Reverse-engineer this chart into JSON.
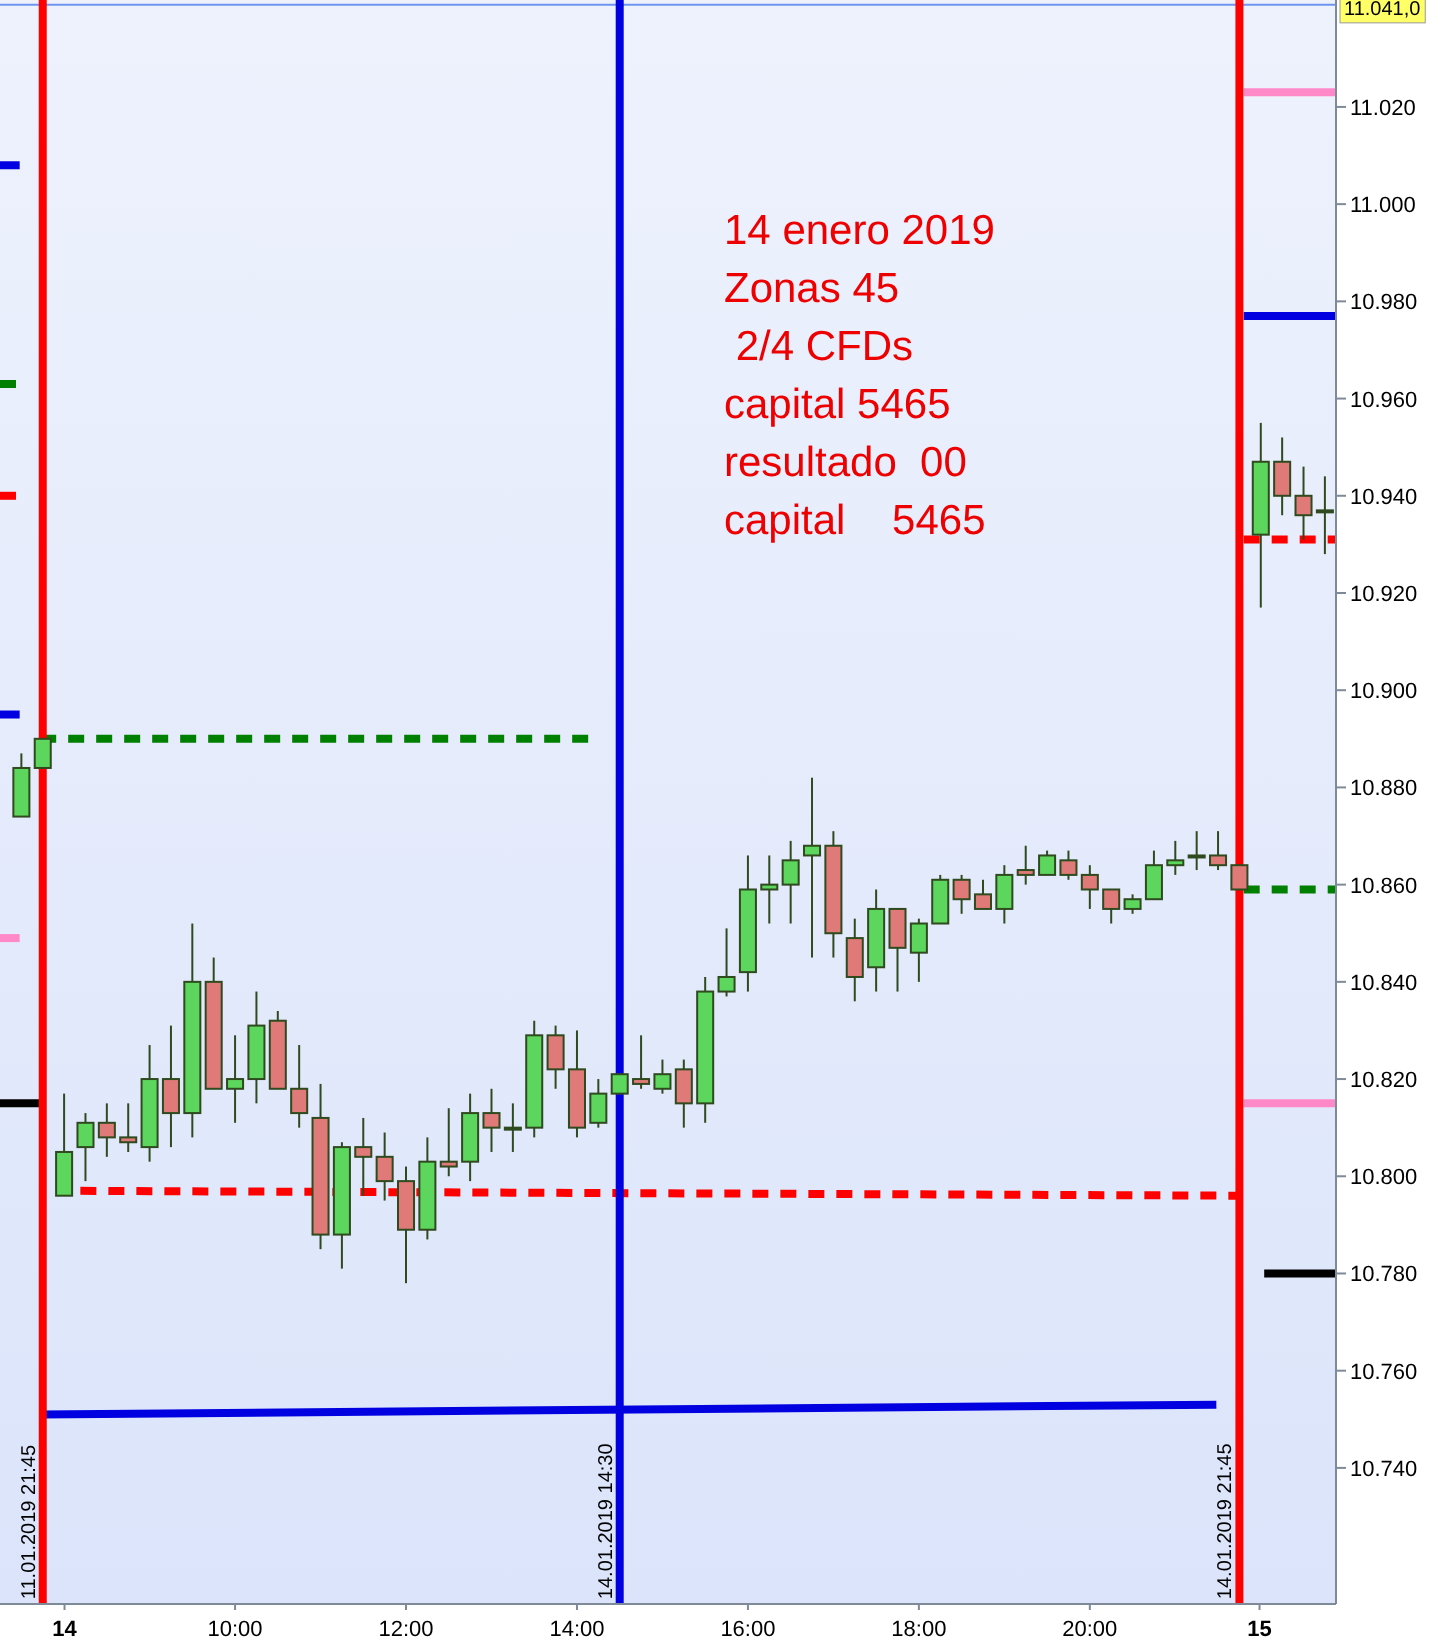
{
  "chart_data": {
    "type": "candlestick",
    "x": [
      7.5,
      7.75,
      8,
      8.25,
      8.5,
      8.75,
      9,
      9.25,
      9.5,
      9.75,
      10,
      10.25,
      10.5,
      10.75,
      11,
      11.25,
      11.5,
      11.75,
      12,
      12.25,
      12.5,
      12.75,
      13,
      13.25,
      13.5,
      13.75,
      14,
      14.25,
      14.5,
      14.75,
      15,
      15.25,
      15.5,
      15.75,
      16,
      16.25,
      16.5,
      16.75,
      17,
      17.25,
      17.5,
      17.75,
      18,
      18.25,
      18.5,
      18.75,
      19,
      19.25,
      19.5,
      19.75,
      20,
      20.25,
      20.5,
      20.75,
      21,
      21.25,
      21.5,
      21.75,
      22,
      22.25,
      22.5,
      22.75
    ],
    "ohlc": [
      [
        10.874,
        10.887,
        10.874,
        10.884
      ],
      [
        10.884,
        10.89,
        10.884,
        10.89
      ],
      [
        10.796,
        10.817,
        10.796,
        10.805
      ],
      [
        10.806,
        10.813,
        10.799,
        10.811
      ],
      [
        10.811,
        10.815,
        10.804,
        10.808
      ],
      [
        10.808,
        10.815,
        10.805,
        10.807
      ],
      [
        10.806,
        10.827,
        10.803,
        10.82
      ],
      [
        10.82,
        10.831,
        10.806,
        10.813
      ],
      [
        10.813,
        10.852,
        10.808,
        10.84
      ],
      [
        10.84,
        10.845,
        10.818,
        10.818
      ],
      [
        10.818,
        10.829,
        10.811,
        10.82
      ],
      [
        10.82,
        10.838,
        10.815,
        10.831
      ],
      [
        10.832,
        10.834,
        10.818,
        10.818
      ],
      [
        10.818,
        10.827,
        10.81,
        10.813
      ],
      [
        10.812,
        10.819,
        10.785,
        10.788
      ],
      [
        10.788,
        10.807,
        10.781,
        10.806
      ],
      [
        10.806,
        10.812,
        10.796,
        10.804
      ],
      [
        10.804,
        10.809,
        10.795,
        10.799
      ],
      [
        10.799,
        10.802,
        10.778,
        10.789
      ],
      [
        10.789,
        10.808,
        10.787,
        10.803
      ],
      [
        10.803,
        10.814,
        10.8,
        10.802
      ],
      [
        10.803,
        10.817,
        10.799,
        10.813
      ],
      [
        10.813,
        10.818,
        10.805,
        10.81
      ],
      [
        10.81,
        10.815,
        10.805,
        10.81
      ],
      [
        10.81,
        10.832,
        10.808,
        10.829
      ],
      [
        10.829,
        10.831,
        10.818,
        10.822
      ],
      [
        10.822,
        10.83,
        10.808,
        10.81
      ],
      [
        10.811,
        10.82,
        10.81,
        10.817
      ],
      [
        10.817,
        10.821,
        10.817,
        10.821
      ],
      [
        10.82,
        10.829,
        10.818,
        10.819
      ],
      [
        10.818,
        10.824,
        10.817,
        10.821
      ],
      [
        10.822,
        10.824,
        10.81,
        10.815
      ],
      [
        10.815,
        10.841,
        10.811,
        10.838
      ],
      [
        10.838,
        10.851,
        10.837,
        10.841
      ],
      [
        10.842,
        10.866,
        10.838,
        10.859
      ],
      [
        10.859,
        10.866,
        10.852,
        10.86
      ],
      [
        10.86,
        10.869,
        10.852,
        10.865
      ],
      [
        10.866,
        10.882,
        10.845,
        10.868
      ],
      [
        10.868,
        10.871,
        10.845,
        10.85
      ],
      [
        10.849,
        10.853,
        10.836,
        10.841
      ],
      [
        10.843,
        10.859,
        10.838,
        10.855
      ],
      [
        10.855,
        10.855,
        10.838,
        10.847
      ],
      [
        10.846,
        10.853,
        10.84,
        10.852
      ],
      [
        10.852,
        10.862,
        10.852,
        10.861
      ],
      [
        10.861,
        10.862,
        10.854,
        10.857
      ],
      [
        10.858,
        10.861,
        10.855,
        10.855
      ],
      [
        10.855,
        10.864,
        10.852,
        10.862
      ],
      [
        10.863,
        10.868,
        10.86,
        10.862
      ],
      [
        10.862,
        10.867,
        10.862,
        10.866
      ],
      [
        10.865,
        10.867,
        10.861,
        10.862
      ],
      [
        10.862,
        10.864,
        10.855,
        10.859
      ],
      [
        10.859,
        10.859,
        10.852,
        10.855
      ],
      [
        10.855,
        10.858,
        10.854,
        10.857
      ],
      [
        10.857,
        10.867,
        10.857,
        10.864
      ],
      [
        10.864,
        10.869,
        10.862,
        10.865
      ],
      [
        10.866,
        10.871,
        10.863,
        10.866
      ],
      [
        10.866,
        10.871,
        10.863,
        10.864
      ],
      [
        10.864,
        10.864,
        10.859,
        10.859
      ],
      [
        10.932,
        10.955,
        10.917,
        10.947
      ],
      [
        10.947,
        10.952,
        10.936,
        10.94
      ],
      [
        10.94,
        10.946,
        10.931,
        10.936
      ],
      [
        10.937,
        10.944,
        10.928,
        10.937
      ]
    ],
    "colors": [
      "#5cd65c",
      "#5cd65c",
      "#5cd65c",
      "#5cd65c",
      "#e07a78",
      "#e07a78",
      "#5cd65c",
      "#e07a78",
      "#5cd65c",
      "#e07a78",
      "#5cd65c",
      "#5cd65c",
      "#e07a78",
      "#e07a78",
      "#e07a78",
      "#5cd65c",
      "#e07a78",
      "#e07a78",
      "#e07a78",
      "#5cd65c",
      "#e07a78",
      "#5cd65c",
      "#e07a78",
      "#5cd65c",
      "#5cd65c",
      "#e07a78",
      "#e07a78",
      "#5cd65c",
      "#5cd65c",
      "#e07a78",
      "#5cd65c",
      "#e07a78",
      "#5cd65c",
      "#5cd65c",
      "#5cd65c",
      "#5cd65c",
      "#5cd65c",
      "#5cd65c",
      "#e07a78",
      "#e07a78",
      "#5cd65c",
      "#e07a78",
      "#5cd65c",
      "#5cd65c",
      "#e07a78",
      "#e07a78",
      "#5cd65c",
      "#e07a78",
      "#5cd65c",
      "#e07a78",
      "#e07a78",
      "#e07a78",
      "#5cd65c",
      "#5cd65c",
      "#5cd65c",
      "#e07a78",
      "#e07a78",
      "#e07a78",
      "#5cd65c",
      "#e07a78",
      "#e07a78",
      "#5cd65c"
    ],
    "series": [
      {
        "type": "line",
        "x": [
          7.25,
          7.48
        ],
        "values": [
          11.008,
          11.008
        ],
        "color": "#0000e0",
        "line_style": "solid"
      },
      {
        "type": "line",
        "x": [
          7.25,
          7.48
        ],
        "values": [
          10.963,
          10.963
        ],
        "color": "#008000",
        "line_style": "dashed"
      },
      {
        "type": "line",
        "x": [
          7.25,
          7.48
        ],
        "values": [
          10.94,
          10.94
        ],
        "color": "#ff0000",
        "line_style": "dashed"
      },
      {
        "type": "line",
        "x": [
          7.25,
          7.48
        ],
        "values": [
          10.895,
          10.895
        ],
        "color": "#0000e0",
        "line_style": "solid"
      },
      {
        "type": "line",
        "x": [
          7.25,
          7.48
        ],
        "values": [
          10.849,
          10.849
        ],
        "color": "#ff88c8",
        "line_style": "solid"
      },
      {
        "type": "line",
        "x": [
          7.25,
          7.72
        ],
        "values": [
          10.815,
          10.815
        ],
        "color": "#000000",
        "line_style": "solid"
      },
      {
        "type": "line",
        "x": [
          7.72,
          14.15
        ],
        "values": [
          10.89,
          10.89
        ],
        "color": "#008000",
        "line_style": "dashed"
      },
      {
        "type": "line",
        "x": [
          8.19,
          21.76
        ],
        "values": [
          10.797,
          10.796
        ],
        "color": "#ff0000",
        "line_style": "dashed"
      },
      {
        "type": "line",
        "x": [
          7.72,
          21.48
        ],
        "values": [
          10.751,
          10.753
        ],
        "color": "#0000e0",
        "line_style": "solid"
      },
      {
        "type": "line",
        "x": [
          21.8,
          22.88
        ],
        "values": [
          11.023,
          11.023
        ],
        "color": "#ff88c8",
        "line_style": "solid"
      },
      {
        "type": "line",
        "x": [
          21.8,
          22.88
        ],
        "values": [
          10.977,
          10.977
        ],
        "color": "#0000e0",
        "line_style": "solid"
      },
      {
        "type": "line",
        "x": [
          21.8,
          22.88
        ],
        "values": [
          10.931,
          10.931
        ],
        "color": "#ff0000",
        "line_style": "dashed"
      },
      {
        "type": "line",
        "x": [
          21.8,
          22.88
        ],
        "values": [
          10.859,
          10.859
        ],
        "color": "#008000",
        "line_style": "dashed"
      },
      {
        "type": "line",
        "x": [
          21.8,
          22.88
        ],
        "values": [
          10.815,
          10.815
        ],
        "color": "#ff88c8",
        "line_style": "solid"
      },
      {
        "type": "line",
        "x": [
          22.04,
          22.88
        ],
        "values": [
          10.78,
          10.78
        ],
        "color": "#000000",
        "line_style": "solid"
      }
    ],
    "ref_lines": [
      {
        "axis": "x",
        "value": 7.75,
        "color": "#ff0000"
      },
      {
        "axis": "x",
        "value": 14.5,
        "color": "#0000e0"
      },
      {
        "axis": "x",
        "value": 21.75,
        "color": "#ff0000"
      },
      {
        "axis": "y",
        "value": 11.041,
        "label": "11.041,0",
        "color": "#6f94f0"
      }
    ],
    "annotations": [
      "14 enero 2019",
      "Zonas 45",
      " 2/4 CFDs",
      "capital 5465",
      "resultado  00",
      "capital    5465",
      {
        "text": "11.01.2019 21:45",
        "x": 7.75,
        "y": 10.713
      },
      {
        "text": "14.01.2019 14:30",
        "x": 14.5,
        "y": 10.713
      },
      {
        "text": "14.01.2019 21:45",
        "x": 21.75,
        "y": 10.713
      }
    ],
    "xlim": [
      7.25,
      22.88
    ],
    "ylim": [
      10.712,
      11.042
    ],
    "x2lim": [
      13.946,
      15.064
    ],
    "x2ticks": [
      14,
      15
    ],
    "xticks": [
      {
        "value": 10,
        "label": "10:00"
      },
      {
        "value": 12,
        "label": "12:00"
      },
      {
        "value": 14,
        "label": "14:00"
      },
      {
        "value": 16,
        "label": "16:00"
      },
      {
        "value": 18,
        "label": "18:00"
      },
      {
        "value": 20,
        "label": "20:00"
      }
    ],
    "yticks": [
      {
        "value": 10.74,
        "label": "10.740"
      },
      {
        "value": 10.76,
        "label": "10.760"
      },
      {
        "value": 10.78,
        "label": "10.780"
      },
      {
        "value": 10.8,
        "label": "10.800"
      },
      {
        "value": 10.82,
        "label": "10.820"
      },
      {
        "value": 10.84,
        "label": "10.840"
      },
      {
        "value": 10.86,
        "label": "10.860"
      },
      {
        "value": 10.88,
        "label": "10.880"
      },
      {
        "value": 10.9,
        "label": "10.900"
      },
      {
        "value": 10.92,
        "label": "10.920"
      },
      {
        "value": 10.94,
        "label": "10.940"
      },
      {
        "value": 10.96,
        "label": "10.960"
      },
      {
        "value": 10.98,
        "label": "10.980"
      },
      {
        "value": 11.0,
        "label": "11.000"
      },
      {
        "value": 11.02,
        "label": "11.020"
      }
    ]
  }
}
